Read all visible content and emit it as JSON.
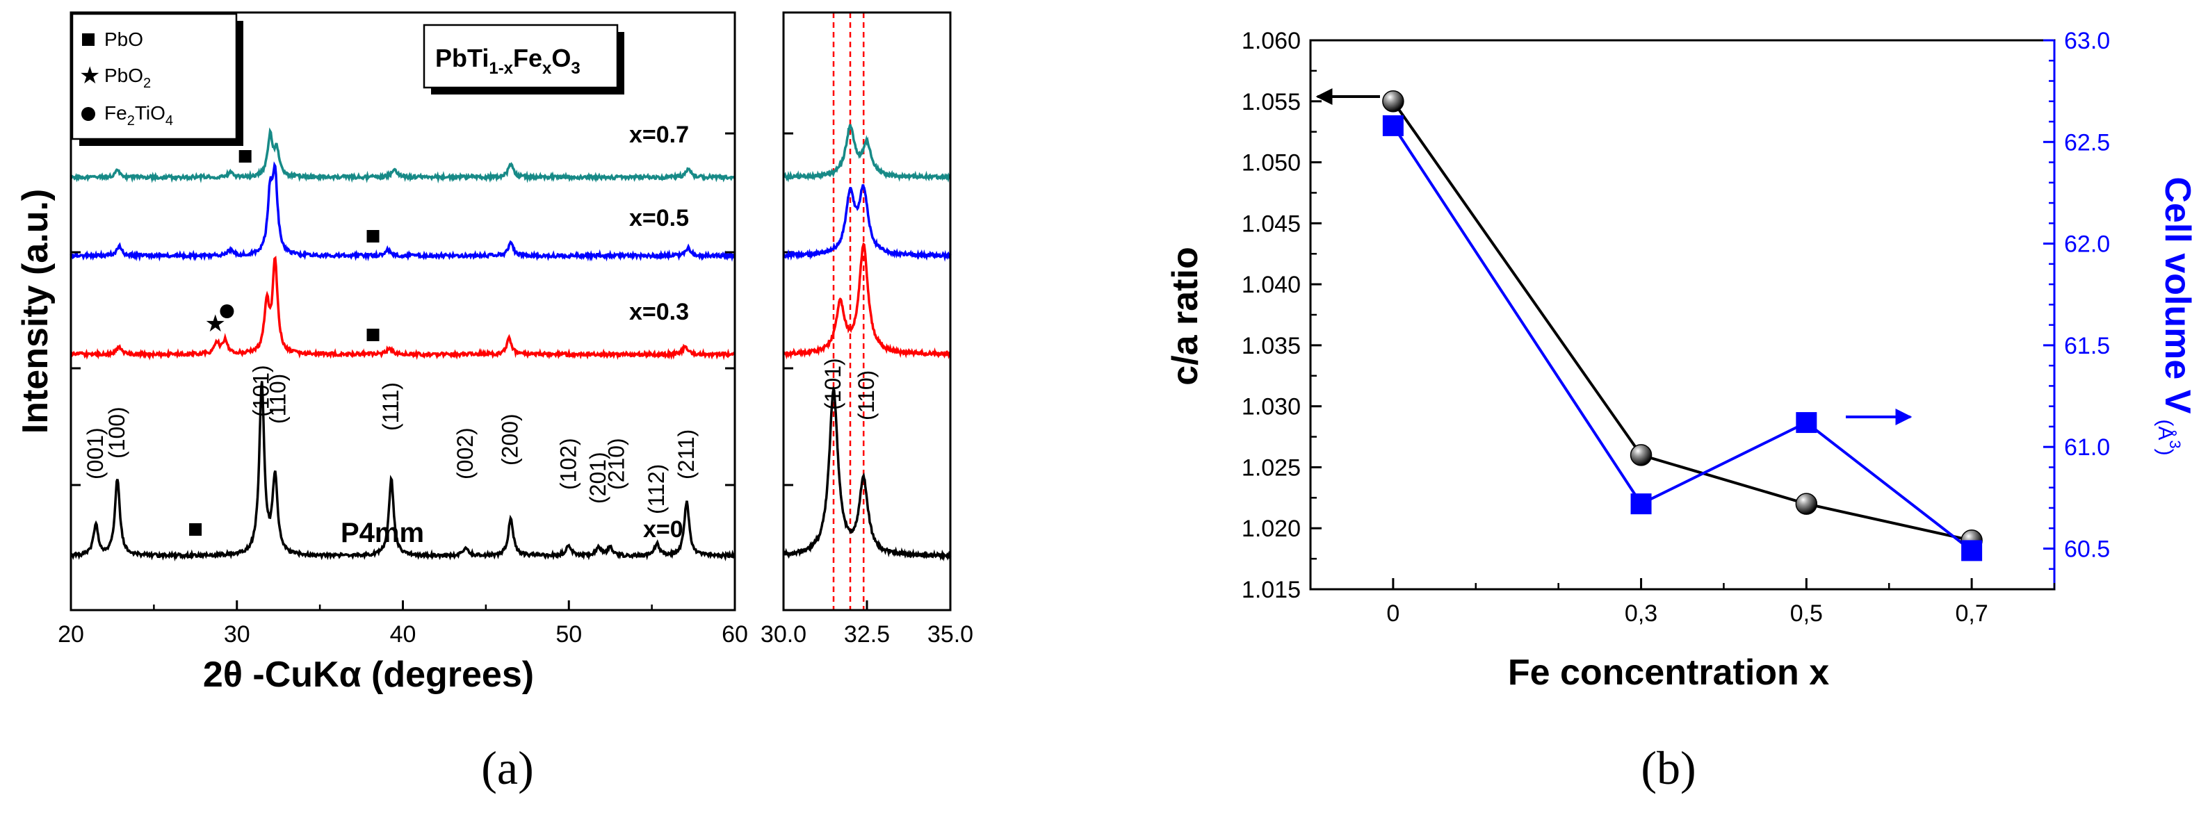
{
  "chart_data": [
    {
      "panel": "a",
      "panel_label": "(a)",
      "type": "line",
      "title": "PbTi1-xFexO3",
      "title_parts": {
        "main": "PbTi",
        "sub1": "1-x",
        "fe": "Fe",
        "sub2": "x",
        "o": "O",
        "sub3": "3"
      },
      "xlabel": "2θ -CuKα (degrees)",
      "ylabel": "Intensity (a.u.)",
      "xlim": [
        20,
        60
      ],
      "xticks": [
        "20",
        "30",
        "40",
        "50",
        "60"
      ],
      "inset_xlim": [
        30.0,
        35.0
      ],
      "inset_xticks": [
        "30.0",
        "32.5",
        "35.0"
      ],
      "inset_reference_lines": [
        31.5,
        32.0,
        32.4
      ],
      "space_group": "P4mm",
      "legend": [
        {
          "marker": "square",
          "label": "PbO",
          "formula": {
            "main": "PbO",
            "sub": ""
          }
        },
        {
          "marker": "star",
          "label": "PbO2",
          "formula": {
            "main": "PbO",
            "sub": "2"
          }
        },
        {
          "marker": "circle",
          "label": "Fe2TiO4",
          "formula": {
            "main": "Fe",
            "sub": "2",
            "rest": "TiO",
            "sub2": "4"
          }
        }
      ],
      "series": [
        {
          "name": "x=0",
          "label": "x=0",
          "color": "#000000",
          "peaks": [
            [
              21.5,
              0.18
            ],
            [
              22.8,
              0.45
            ],
            [
              31.5,
              1.0
            ],
            [
              32.3,
              0.45
            ],
            [
              39.3,
              0.45
            ],
            [
              43.8,
              0.05
            ],
            [
              46.5,
              0.22
            ],
            [
              50.0,
              0.06
            ],
            [
              51.8,
              0.05
            ],
            [
              52.5,
              0.05
            ],
            [
              55.3,
              0.07
            ],
            [
              57.1,
              0.32
            ]
          ],
          "inset_peaks": [
            [
              31.5,
              1.0
            ],
            [
              32.4,
              0.45
            ]
          ]
        },
        {
          "name": "x=0.3",
          "label": "x=0.3",
          "color": "#ff0000",
          "peaks": [
            [
              22.9,
              0.08
            ],
            [
              28.8,
              0.12
            ],
            [
              29.3,
              0.15
            ],
            [
              31.8,
              0.55
            ],
            [
              32.3,
              1.0
            ],
            [
              39.2,
              0.07
            ],
            [
              46.4,
              0.18
            ],
            [
              57.0,
              0.08
            ]
          ],
          "inset_peaks": [
            [
              31.7,
              0.45
            ],
            [
              32.4,
              1.0
            ]
          ]
        },
        {
          "name": "x=0.5",
          "label": "x=0.5",
          "color": "#0000ff",
          "peaks": [
            [
              22.9,
              0.1
            ],
            [
              29.6,
              0.06
            ],
            [
              32.0,
              0.6
            ],
            [
              32.3,
              0.8
            ],
            [
              39.1,
              0.06
            ],
            [
              46.5,
              0.14
            ],
            [
              57.2,
              0.08
            ]
          ],
          "inset_peaks": [
            [
              32.0,
              0.7
            ],
            [
              32.4,
              0.75
            ]
          ]
        },
        {
          "name": "x=0.7",
          "label": "x=0.7",
          "color": "#178a87",
          "peaks": [
            [
              22.8,
              0.1
            ],
            [
              29.6,
              0.06
            ],
            [
              32.0,
              0.55
            ],
            [
              32.4,
              0.35
            ],
            [
              39.5,
              0.12
            ],
            [
              46.5,
              0.18
            ],
            [
              57.2,
              0.12
            ]
          ],
          "inset_peaks": [
            [
              32.0,
              0.7
            ],
            [
              32.5,
              0.45
            ]
          ]
        }
      ],
      "hkl_labels": [
        {
          "text": "(001)",
          "x": 21.5
        },
        {
          "text": "(100)",
          "x": 22.8
        },
        {
          "text": "(101)",
          "x": 31.5
        },
        {
          "text": "(110)",
          "x": 32.5
        },
        {
          "text": "(111)",
          "x": 39.3
        },
        {
          "text": "(002)",
          "x": 43.8
        },
        {
          "text": "(200)",
          "x": 46.5
        },
        {
          "text": "(102)",
          "x": 50.0
        },
        {
          "text": "(201)",
          "x": 51.8
        },
        {
          "text": "(210)",
          "x": 52.9
        },
        {
          "text": "(112)",
          "x": 55.3
        },
        {
          "text": "(211)",
          "x": 57.1
        }
      ],
      "inset_hkl_labels": [
        {
          "text": "(101)",
          "x": 31.5
        },
        {
          "text": "(110)",
          "x": 32.5
        }
      ],
      "impurity_markers": [
        {
          "marker": "square",
          "series": "x=0",
          "x": 27.5
        },
        {
          "marker": "star",
          "series": "x=0.3",
          "x": 28.7
        },
        {
          "marker": "circle",
          "series": "x=0.3",
          "x": 29.4
        },
        {
          "marker": "square",
          "series": "x=0.3",
          "x": 38.2
        },
        {
          "marker": "square",
          "series": "x=0.5",
          "x": 38.2
        },
        {
          "marker": "square",
          "series": "x=0.7",
          "x": 30.5
        }
      ]
    },
    {
      "panel": "b",
      "panel_label": "(b)",
      "type": "line",
      "xlabel": "Fe concentration x",
      "ylabel_left": "c/a ratio",
      "ylabel_right": "Cell volume V",
      "ylabel_right_unit": {
        "base": "Å",
        "exp": "3"
      },
      "categories": [
        "0",
        "0,3",
        "0,5",
        "0,7"
      ],
      "x": [
        0,
        0.3,
        0.5,
        0.7
      ],
      "xlim": [
        -0.1,
        0.8
      ],
      "ylim_left": [
        1.015,
        1.06
      ],
      "yticks_left": [
        "1.015",
        "1.020",
        "1.025",
        "1.030",
        "1.035",
        "1.040",
        "1.045",
        "1.050",
        "1.055",
        "1.060"
      ],
      "ylim_right": [
        60.3,
        63.0
      ],
      "yticks_right": [
        "60.5",
        "61.0",
        "61.5",
        "62.0",
        "62.5",
        "63.0"
      ],
      "series": [
        {
          "name": "c/a ratio",
          "axis": "left",
          "color": "#000000",
          "marker": "sphere",
          "values": [
            1.055,
            1.026,
            1.022,
            1.019
          ]
        },
        {
          "name": "Cell volume",
          "axis": "right",
          "color": "#0000ff",
          "marker": "square",
          "values": [
            62.58,
            60.72,
            61.12,
            60.49
          ]
        }
      ]
    }
  ]
}
